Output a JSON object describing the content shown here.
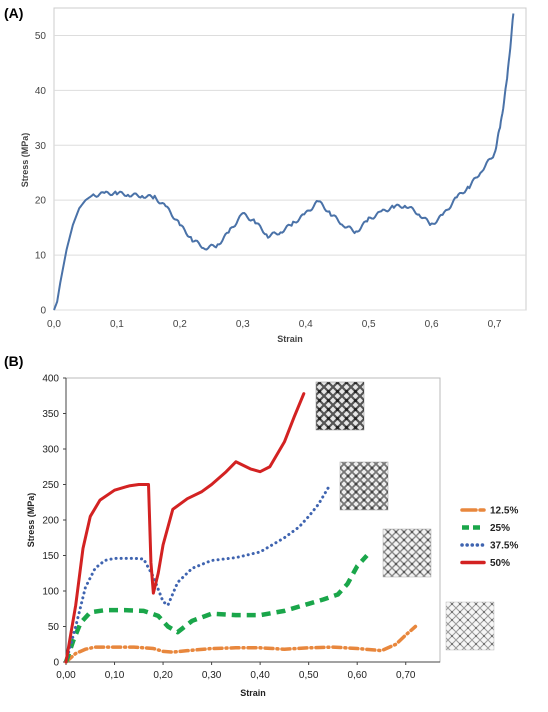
{
  "chart_data": [
    {
      "panel_label": "(A)",
      "type": "line",
      "title": "",
      "xlabel": "Strain",
      "ylabel": "Stress (MPa)",
      "xlim": [
        0,
        0.75
      ],
      "ylim": [
        0,
        55
      ],
      "x_ticks": [
        0,
        0.1,
        0.2,
        0.3,
        0.4,
        0.5,
        0.6,
        0.7
      ],
      "x_tick_labels": [
        "0,0",
        "0,1",
        "0,2",
        "0,3",
        "0,4",
        "0,5",
        "0,6",
        "0,7"
      ],
      "y_ticks": [
        0,
        10,
        20,
        30,
        40,
        50
      ],
      "y_tick_labels": [
        "0",
        "10",
        "20",
        "30",
        "40",
        "50"
      ],
      "grid": "horizontal",
      "legend": "none",
      "series": [
        {
          "color": "#4a72a8",
          "style": "solid",
          "x": [
            0,
            0.005,
            0.01,
            0.02,
            0.03,
            0.04,
            0.05,
            0.06,
            0.08,
            0.1,
            0.12,
            0.14,
            0.16,
            0.18,
            0.2,
            0.22,
            0.24,
            0.26,
            0.28,
            0.3,
            0.32,
            0.34,
            0.36,
            0.38,
            0.4,
            0.42,
            0.44,
            0.46,
            0.48,
            0.5,
            0.52,
            0.54,
            0.56,
            0.58,
            0.6,
            0.62,
            0.64,
            0.66,
            0.68,
            0.7,
            0.71,
            0.72,
            0.73
          ],
          "y": [
            0,
            1.5,
            5,
            11,
            15.5,
            18.5,
            20,
            20.8,
            21.2,
            21.3,
            21,
            20.8,
            20.5,
            18.5,
            15.5,
            12.8,
            11.3,
            11.8,
            14.5,
            17.5,
            16,
            13.5,
            14.2,
            15.8,
            17.5,
            19.8,
            17.5,
            15.5,
            14.2,
            16.5,
            17.8,
            18.8,
            19,
            17.5,
            15.5,
            17.5,
            20.5,
            22.5,
            25.5,
            28.5,
            34,
            42,
            54
          ]
        }
      ]
    },
    {
      "panel_label": "(B)",
      "type": "line",
      "title": "",
      "xlabel": "Strain",
      "ylabel": "Stress (MPa)",
      "xlim": [
        0,
        0.75
      ],
      "ylim": [
        0,
        400
      ],
      "x_ticks": [
        0,
        0.1,
        0.2,
        0.3,
        0.4,
        0.5,
        0.6,
        0.7
      ],
      "x_tick_labels": [
        "0,00",
        "0,10",
        "0,20",
        "0,30",
        "0,40",
        "0,50",
        "0,60",
        "0,70"
      ],
      "y_ticks": [
        0,
        50,
        100,
        150,
        200,
        250,
        300,
        350,
        400
      ],
      "y_tick_labels": [
        "0",
        "50",
        "100",
        "150",
        "200",
        "250",
        "300",
        "350",
        "400"
      ],
      "grid": "none",
      "legend": "right",
      "series": [
        {
          "name": "12.5%",
          "color": "#e8873d",
          "style": "dashdot",
          "x": [
            0,
            0.02,
            0.04,
            0.06,
            0.1,
            0.14,
            0.18,
            0.2,
            0.22,
            0.25,
            0.3,
            0.35,
            0.4,
            0.45,
            0.5,
            0.55,
            0.6,
            0.65,
            0.68,
            0.7,
            0.72
          ],
          "y": [
            0,
            12,
            18,
            21,
            21,
            21,
            19,
            15,
            14,
            16,
            19,
            20,
            20,
            18,
            20,
            21,
            19,
            16,
            25,
            38,
            50
          ]
        },
        {
          "name": "25%",
          "color": "#1aa64a",
          "style": "dashed",
          "x": [
            0,
            0.015,
            0.03,
            0.05,
            0.08,
            0.12,
            0.16,
            0.19,
            0.21,
            0.23,
            0.26,
            0.3,
            0.35,
            0.4,
            0.45,
            0.5,
            0.53,
            0.56,
            0.58,
            0.6,
            0.62
          ],
          "y": [
            0,
            30,
            55,
            70,
            73,
            73,
            72,
            65,
            50,
            42,
            58,
            68,
            66,
            66,
            72,
            82,
            88,
            95,
            110,
            135,
            150
          ]
        },
        {
          "name": "37.5%",
          "color": "#3f64b0",
          "style": "dotted",
          "x": [
            0,
            0.02,
            0.04,
            0.06,
            0.08,
            0.1,
            0.14,
            0.16,
            0.18,
            0.2,
            0.21,
            0.23,
            0.26,
            0.3,
            0.35,
            0.4,
            0.45,
            0.48,
            0.5,
            0.52,
            0.54
          ],
          "y": [
            0,
            50,
            105,
            132,
            143,
            146,
            146,
            145,
            120,
            85,
            80,
            112,
            132,
            143,
            147,
            155,
            175,
            190,
            205,
            222,
            245
          ]
        },
        {
          "name": "50%",
          "color": "#d32222",
          "style": "solid",
          "x": [
            0,
            0.02,
            0.035,
            0.05,
            0.07,
            0.1,
            0.13,
            0.15,
            0.17,
            0.175,
            0.18,
            0.19,
            0.2,
            0.22,
            0.25,
            0.28,
            0.3,
            0.33,
            0.35,
            0.38,
            0.4,
            0.42,
            0.45,
            0.47,
            0.49
          ],
          "y": [
            0,
            80,
            160,
            205,
            228,
            242,
            248,
            250,
            250,
            140,
            97,
            125,
            165,
            215,
            230,
            240,
            250,
            268,
            282,
            272,
            268,
            275,
            310,
            345,
            378
          ]
        }
      ]
    }
  ]
}
